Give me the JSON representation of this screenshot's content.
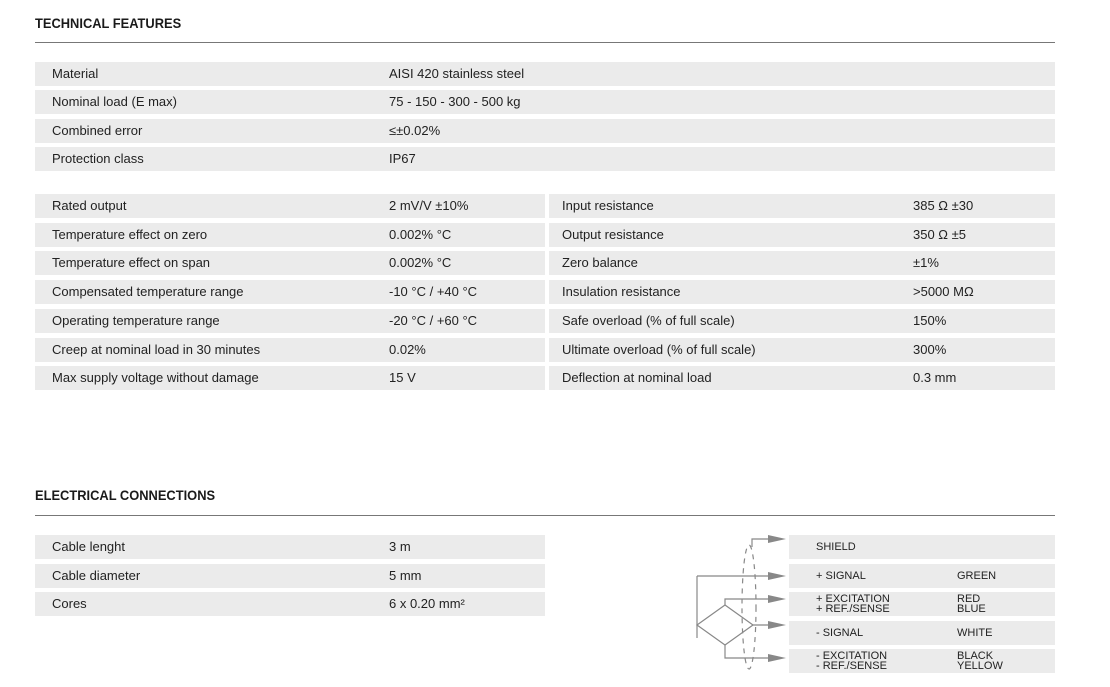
{
  "technical": {
    "title": "TECHNICAL FEATURES",
    "general": [
      [
        "Material",
        "AISI 420 stainless steel"
      ],
      [
        "Nominal load (E max)",
        "75 - 150 - 300 - 500 kg"
      ],
      [
        "Combined error",
        "≤±0.02%"
      ],
      [
        "Protection class",
        "IP67"
      ]
    ],
    "left": [
      [
        "Rated output",
        "2 mV/V ±10%"
      ],
      [
        "Temperature effect on zero",
        "0.002% °C"
      ],
      [
        "Temperature effect on span",
        "0.002% °C"
      ],
      [
        "Compensated temperature range",
        "-10 °C / +40 °C"
      ],
      [
        "Operating temperature range",
        "-20 °C / +60 °C"
      ],
      [
        "Creep at nominal load in 30 minutes",
        "0.02%"
      ],
      [
        "Max supply voltage without damage",
        "15 V"
      ]
    ],
    "right": [
      [
        "Input resistance",
        "385 Ω ±30"
      ],
      [
        "Output resistance",
        "350 Ω ±5"
      ],
      [
        "Zero balance",
        "±1%"
      ],
      [
        "Insulation resistance",
        ">5000 MΩ"
      ],
      [
        "Safe overload (% of full scale)",
        "150%"
      ],
      [
        "Ultimate overload (% of full scale)",
        "300%"
      ],
      [
        "Deflection at nominal load",
        "0.3 mm"
      ]
    ]
  },
  "electrical": {
    "title": "ELECTRICAL CONNECTIONS",
    "cable": [
      [
        "Cable lenght",
        "3 m"
      ],
      [
        "Cable diameter",
        "5 mm"
      ],
      [
        "Cores",
        "6 x 0.20 mm²"
      ]
    ],
    "wiring": [
      {
        "signal": "SHIELD",
        "color": ""
      },
      {
        "signal": "+ SIGNAL",
        "color": "GREEN"
      },
      {
        "signal": "+ EXCITATION",
        "color": "RED",
        "signal2": "+ REF./SENSE",
        "color2": "BLUE"
      },
      {
        "signal": "- SIGNAL",
        "color": "WHITE"
      },
      {
        "signal": "- EXCITATION",
        "color": "BLACK",
        "signal2": "- REF./SENSE",
        "color2": "YELLOW"
      }
    ]
  }
}
